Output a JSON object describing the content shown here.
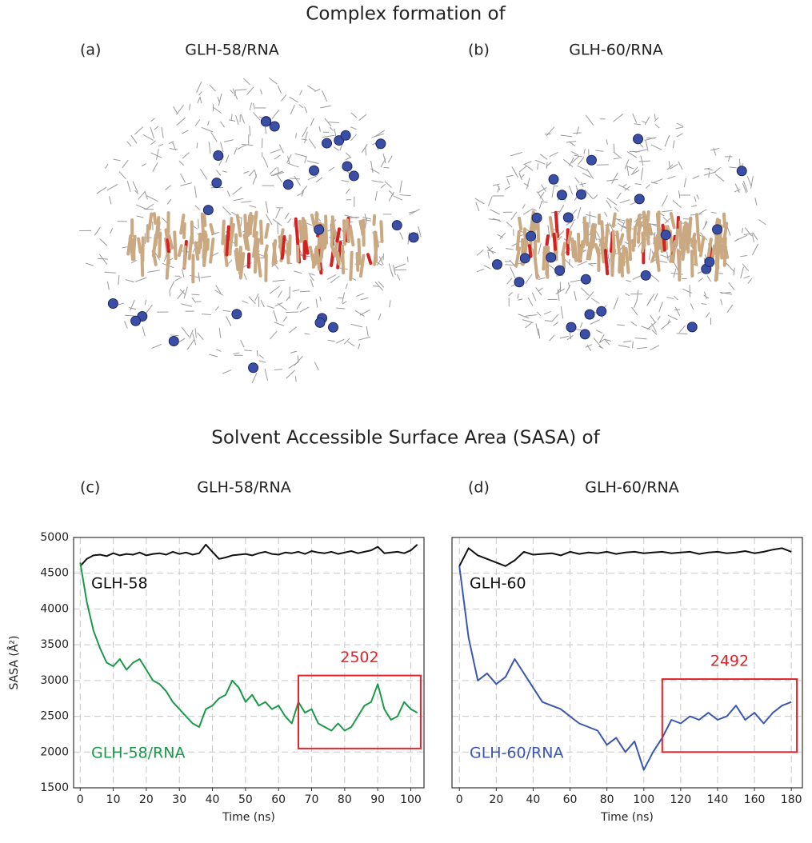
{
  "header": {
    "title": "Complex formation of",
    "panels": [
      {
        "tag": "(a)",
        "label": "GLH-58/RNA"
      },
      {
        "tag": "(b)",
        "label": "GLH-60/RNA"
      }
    ]
  },
  "sasa_header": {
    "title": "Solvent Accessible Surface Area (SASA) of",
    "panels": [
      {
        "tag": "(c)",
        "label": "GLH-58/RNA"
      },
      {
        "tag": "(d)",
        "label": "GLH-60/RNA"
      }
    ]
  },
  "chart_data": [
    {
      "type": "line",
      "x_label": "Time (ns)",
      "y_label": "SASA (Å²)",
      "grid": true,
      "ytick_labels": true,
      "xlim": [
        -2,
        104
      ],
      "xticks": [
        0,
        10,
        20,
        30,
        40,
        50,
        60,
        70,
        80,
        90,
        100
      ],
      "ylim": [
        1500,
        5000
      ],
      "yticks": [
        1500,
        2000,
        2500,
        3000,
        3500,
        4000,
        4500,
        5000
      ],
      "x": [
        0,
        2,
        4,
        6,
        8,
        10,
        12,
        14,
        16,
        18,
        20,
        22,
        24,
        26,
        28,
        30,
        32,
        34,
        36,
        38,
        40,
        42,
        44,
        46,
        48,
        50,
        52,
        54,
        56,
        58,
        60,
        62,
        64,
        66,
        68,
        70,
        72,
        74,
        76,
        78,
        80,
        82,
        84,
        86,
        88,
        90,
        92,
        94,
        96,
        98,
        100,
        102
      ],
      "series": [
        {
          "name": "GLH-58",
          "color": "#111111",
          "values": [
            4600,
            4700,
            4750,
            4760,
            4740,
            4780,
            4750,
            4770,
            4760,
            4790,
            4750,
            4770,
            4780,
            4760,
            4800,
            4770,
            4790,
            4760,
            4780,
            4900,
            4800,
            4700,
            4720,
            4750,
            4760,
            4770,
            4750,
            4780,
            4800,
            4770,
            4760,
            4790,
            4780,
            4800,
            4770,
            4810,
            4790,
            4780,
            4800,
            4770,
            4790,
            4810,
            4780,
            4800,
            4820,
            4870,
            4780,
            4790,
            4800,
            4780,
            4820,
            4900
          ]
        },
        {
          "name": "GLH-58/RNA",
          "color": "#1a9a48",
          "values": [
            4650,
            4100,
            3700,
            3450,
            3250,
            3200,
            3300,
            3150,
            3250,
            3300,
            3150,
            3000,
            2950,
            2850,
            2700,
            2600,
            2500,
            2400,
            2350,
            2600,
            2650,
            2750,
            2800,
            3000,
            2900,
            2700,
            2800,
            2650,
            2700,
            2600,
            2650,
            2500,
            2400,
            2700,
            2550,
            2600,
            2400,
            2350,
            2300,
            2400,
            2300,
            2350,
            2500,
            2650,
            2700,
            2950,
            2600,
            2450,
            2500,
            2700,
            2600,
            2550
          ]
        }
      ],
      "highlight": {
        "label": "2502",
        "color": "#e0252b",
        "xlim": [
          66,
          103
        ],
        "ylim": [
          2050,
          3070
        ]
      }
    },
    {
      "type": "line",
      "x_label": "Time (ns)",
      "grid": true,
      "ytick_labels": false,
      "xlim": [
        -4,
        186
      ],
      "xticks": [
        0,
        20,
        40,
        60,
        80,
        100,
        120,
        140,
        160,
        180
      ],
      "ylim": [
        1500,
        5000
      ],
      "yticks": [
        1500,
        2000,
        2500,
        3000,
        3500,
        4000,
        4500,
        5000
      ],
      "x": [
        0,
        5,
        10,
        15,
        20,
        25,
        30,
        35,
        40,
        45,
        50,
        55,
        60,
        65,
        70,
        75,
        80,
        85,
        90,
        95,
        100,
        105,
        110,
        115,
        120,
        125,
        130,
        135,
        140,
        145,
        150,
        155,
        160,
        165,
        170,
        175,
        180
      ],
      "series": [
        {
          "name": "GLH-60",
          "color": "#111111",
          "values": [
            4600,
            4850,
            4750,
            4700,
            4650,
            4600,
            4680,
            4800,
            4760,
            4770,
            4780,
            4750,
            4800,
            4770,
            4790,
            4780,
            4800,
            4770,
            4790,
            4800,
            4780,
            4790,
            4800,
            4780,
            4790,
            4800,
            4770,
            4790,
            4800,
            4780,
            4790,
            4810,
            4780,
            4800,
            4830,
            4850,
            4800
          ]
        },
        {
          "name": "GLH-60/RNA",
          "color": "#3a56b0",
          "values": [
            4600,
            3600,
            3000,
            3100,
            2950,
            3050,
            3300,
            3100,
            2900,
            2700,
            2650,
            2600,
            2500,
            2400,
            2350,
            2300,
            2100,
            2200,
            2000,
            2150,
            1750,
            2000,
            2200,
            2450,
            2400,
            2500,
            2450,
            2550,
            2450,
            2500,
            2650,
            2450,
            2550,
            2400,
            2550,
            2650,
            2700
          ]
        }
      ],
      "highlight": {
        "label": "2492",
        "color": "#e0252b",
        "xlim": [
          110,
          183
        ],
        "ylim": [
          2000,
          3020
        ]
      }
    }
  ]
}
